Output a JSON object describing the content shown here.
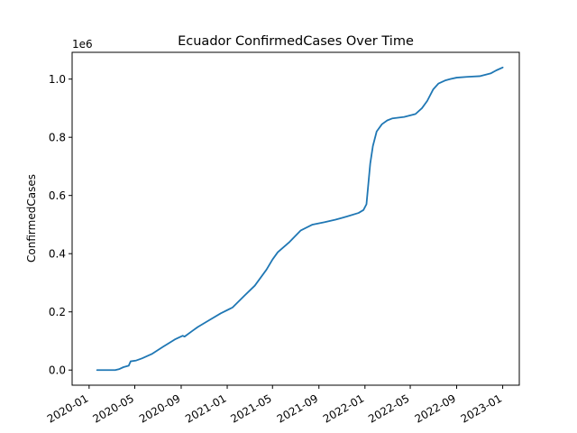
{
  "chart_data": {
    "type": "line",
    "title": "Ecuador  ConfirmedCases Over Time",
    "xlabel": "",
    "ylabel": "ConfirmedCases",
    "y_offset_label": "1e6",
    "x_scale": "time",
    "xlim": [
      "2019-11-17",
      "2023-02-14"
    ],
    "ylim": [
      -0.052,
      1.092
    ],
    "grid": false,
    "legend": "none",
    "line_color": "#1f77b4",
    "x_tick_labels": [
      "2020-01",
      "2020-05",
      "2020-09",
      "2021-01",
      "2021-05",
      "2021-09",
      "2022-01",
      "2022-05",
      "2022-09",
      "2023-01"
    ],
    "y_tick_values": [
      0.0,
      0.2,
      0.4,
      0.6,
      0.8,
      1.0
    ],
    "y_tick_labels": [
      "0.0",
      "0.2",
      "0.4",
      "0.6",
      "0.8",
      "1.0"
    ],
    "series": [
      {
        "x": [
          "2020-01-22",
          "2020-02-15",
          "2020-03-10",
          "2020-03-20",
          "2020-04-01",
          "2020-04-15",
          "2020-04-20",
          "2020-05-05",
          "2020-05-20",
          "2020-06-15",
          "2020-07-15",
          "2020-08-15",
          "2020-09-05",
          "2020-09-10",
          "2020-10-01",
          "2020-10-15",
          "2020-11-15",
          "2020-12-15",
          "2021-01-15",
          "2021-02-15",
          "2021-03-15",
          "2021-04-15",
          "2021-05-01",
          "2021-05-15",
          "2021-06-15",
          "2021-07-15",
          "2021-08-15",
          "2021-09-15",
          "2021-10-15",
          "2021-11-15",
          "2021-12-15",
          "2021-12-28",
          "2022-01-05",
          "2022-01-10",
          "2022-01-15",
          "2022-01-22",
          "2022-02-01",
          "2022-02-15",
          "2022-03-01",
          "2022-03-15",
          "2022-04-15",
          "2022-05-15",
          "2022-06-01",
          "2022-06-15",
          "2022-07-01",
          "2022-07-15",
          "2022-08-01",
          "2022-08-15",
          "2022-09-01",
          "2022-10-01",
          "2022-11-01",
          "2022-12-01",
          "2022-12-15",
          "2023-01-01"
        ],
        "y": [
          0.0,
          0.0,
          0.0,
          0.003,
          0.01,
          0.015,
          0.03,
          0.033,
          0.04,
          0.055,
          0.08,
          0.105,
          0.118,
          0.115,
          0.135,
          0.148,
          0.172,
          0.195,
          0.215,
          0.255,
          0.29,
          0.345,
          0.38,
          0.405,
          0.44,
          0.48,
          0.5,
          0.508,
          0.517,
          0.528,
          0.54,
          0.55,
          0.57,
          0.64,
          0.71,
          0.77,
          0.82,
          0.845,
          0.858,
          0.865,
          0.87,
          0.88,
          0.9,
          0.925,
          0.965,
          0.985,
          0.995,
          1.0,
          1.005,
          1.008,
          1.01,
          1.02,
          1.03,
          1.04
        ]
      }
    ]
  }
}
